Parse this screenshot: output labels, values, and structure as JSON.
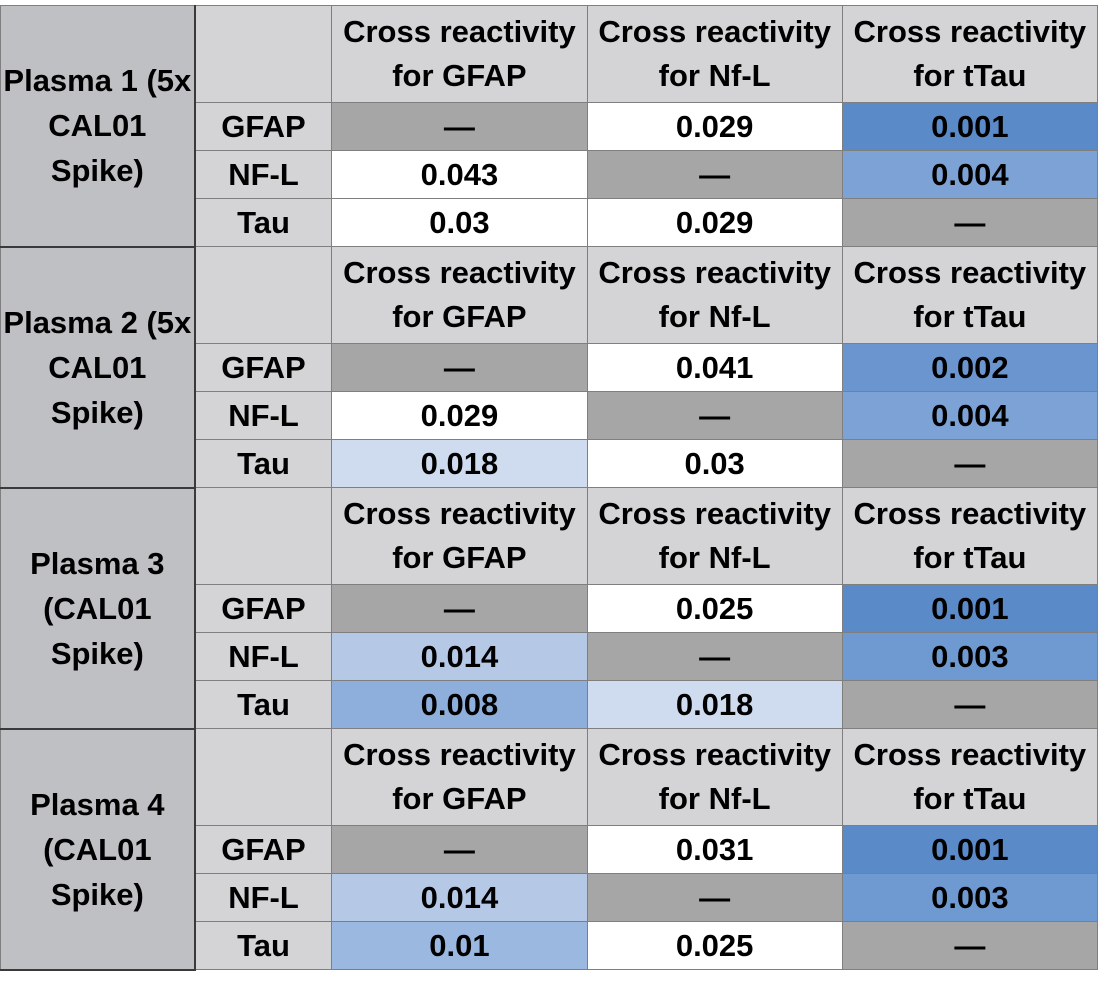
{
  "col_header_line1": "Cross reactivity",
  "col_headers": [
    "for GFAP",
    "for Nf-L",
    "for tTau"
  ],
  "dash": "—",
  "groups": [
    {
      "title_lines": [
        "Plasma 1 (5x",
        "CAL01",
        "Spike)"
      ],
      "rows": [
        {
          "label": "GFAP",
          "values": [
            "—",
            "0.029",
            "0.001"
          ],
          "colors": [
            "#a6a6a6",
            "#ffffff",
            "#5b8ac8"
          ]
        },
        {
          "label": "NF-L",
          "values": [
            "0.043",
            "—",
            "0.004"
          ],
          "colors": [
            "#ffffff",
            "#a6a6a6",
            "#7ca2d6"
          ]
        },
        {
          "label": "Tau",
          "values": [
            "0.03",
            "0.029",
            "—"
          ],
          "colors": [
            "#ffffff",
            "#ffffff",
            "#a6a6a6"
          ]
        }
      ]
    },
    {
      "title_lines": [
        "Plasma 2 (5x",
        "CAL01",
        "Spike)"
      ],
      "rows": [
        {
          "label": "GFAP",
          "values": [
            "—",
            "0.041",
            "0.002"
          ],
          "colors": [
            "#a6a6a6",
            "#ffffff",
            "#6a95cf"
          ]
        },
        {
          "label": "NF-L",
          "values": [
            "0.029",
            "—",
            "0.004"
          ],
          "colors": [
            "#ffffff",
            "#a6a6a6",
            "#7ca2d6"
          ]
        },
        {
          "label": "Tau",
          "values": [
            "0.018",
            "0.03",
            "—"
          ],
          "colors": [
            "#cfdcef",
            "#ffffff",
            "#a6a6a6"
          ]
        }
      ]
    },
    {
      "title_lines": [
        "Plasma 3",
        "(CAL01",
        "Spike)"
      ],
      "rows": [
        {
          "label": "GFAP",
          "values": [
            "—",
            "0.025",
            "0.001"
          ],
          "colors": [
            "#a6a6a6",
            "#ffffff",
            "#5b8ac8"
          ]
        },
        {
          "label": "NF-L",
          "values": [
            "0.014",
            "—",
            "0.003"
          ],
          "colors": [
            "#b5c9e7",
            "#a6a6a6",
            "#6f99d1"
          ]
        },
        {
          "label": "Tau",
          "values": [
            "0.008",
            "0.018",
            "—"
          ],
          "colors": [
            "#8eaedc",
            "#cfdcef",
            "#a6a6a6"
          ]
        }
      ]
    },
    {
      "title_lines": [
        "Plasma 4",
        "(CAL01",
        "Spike)"
      ],
      "rows": [
        {
          "label": "GFAP",
          "values": [
            "—",
            "0.031",
            "0.001"
          ],
          "colors": [
            "#a6a6a6",
            "#ffffff",
            "#5b8ac8"
          ]
        },
        {
          "label": "NF-L",
          "values": [
            "0.014",
            "—",
            "0.003"
          ],
          "colors": [
            "#b5c9e7",
            "#a6a6a6",
            "#6f99d1"
          ]
        },
        {
          "label": "Tau",
          "values": [
            "0.01",
            "0.025",
            "—"
          ],
          "colors": [
            "#9ab8e0",
            "#ffffff",
            "#a6a6a6"
          ]
        }
      ]
    }
  ]
}
